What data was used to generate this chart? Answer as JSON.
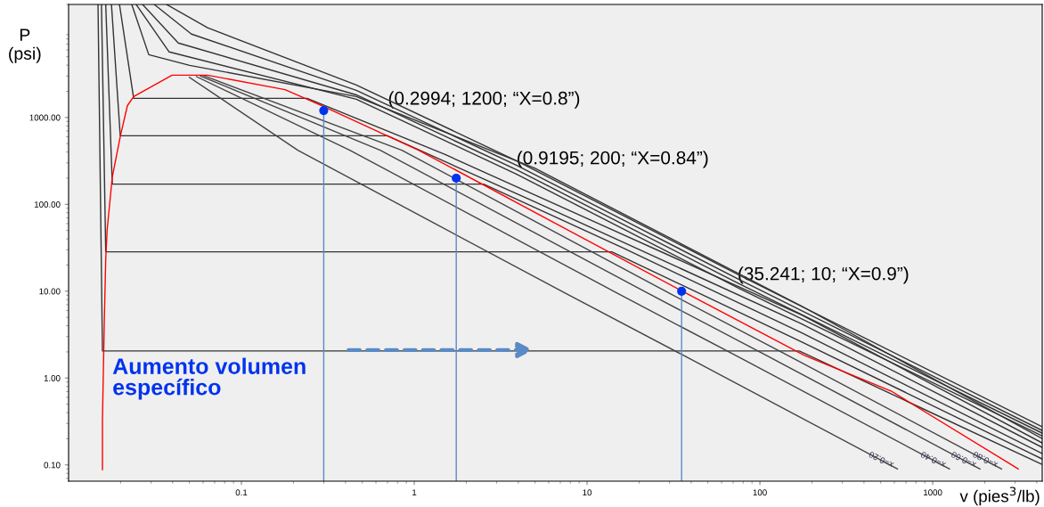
{
  "chart_data": {
    "type": "line",
    "xlabel": "v (pies$^{3}$/lb)",
    "ylabel": "P\n(psi)",
    "log": "xy",
    "marker": "none",
    "xlim": [
      0.01,
      4300
    ],
    "ylim": [
      0.065,
      20000
    ],
    "xticks": [
      0.1,
      1,
      10,
      100,
      1000
    ],
    "yticks": [
      {
        "value": 0.1,
        "label": "0.10"
      },
      {
        "value": 1,
        "label": "1.00"
      },
      {
        "value": 10,
        "label": "10.00"
      },
      {
        "value": 100,
        "label": "100.00"
      },
      {
        "value": 1000,
        "label": "1000.00"
      }
    ],
    "series": [
      {
        "color": "#333333",
        "x": [
          0.0148,
          0.0157,
          169,
          4300
        ],
        "values": [
          20000,
          2.05,
          2.05,
          0.101
        ]
      },
      {
        "color": "#333333",
        "x": [
          0.0155,
          0.0164,
          13.9,
          175,
          4300
        ],
        "values": [
          20000,
          28.4,
          28.4,
          2.6,
          0.117
        ]
      },
      {
        "color": "#333333",
        "x": [
          0.0164,
          0.0179,
          2.52,
          16.3,
          175,
          4300
        ],
        "values": [
          20000,
          171,
          171,
          31.2,
          3.3,
          0.135
        ]
      },
      {
        "color": "#333333",
        "x": [
          0.0177,
          0.0199,
          0.7,
          4.97,
          175,
          4300
        ],
        "values": [
          20000,
          615,
          615,
          107,
          4.2,
          0.159
        ]
      },
      {
        "color": "#333333",
        "x": [
          0.0197,
          0.0238,
          0.24,
          1.51,
          175,
          4300
        ],
        "values": [
          20000,
          1660,
          1660,
          374,
          5.3,
          0.179
        ]
      },
      {
        "color": "#333333",
        "x": [
          0.0232,
          0.0291,
          0.0502,
          0.462,
          4.97,
          175,
          4300
        ],
        "values": [
          20000,
          5280,
          3980,
          1740,
          262,
          6.7,
          0.201
        ]
      },
      {
        "color": "#333333",
        "x": [
          0.0246,
          0.0382,
          0.462,
          3.92,
          76.1,
          4300
        ],
        "values": [
          20000,
          5680,
          1620,
          222,
          10.7,
          0.216
        ]
      },
      {
        "color": "#333333",
        "x": [
          0.0268,
          0.0431,
          0.462,
          3.92,
          76.1,
          4300
        ],
        "values": [
          20000,
          7200,
          1820,
          250,
          12.1,
          0.232
        ]
      },
      {
        "color": "#333333",
        "x": [
          0.0313,
          0.0514,
          0.462,
          3.92,
          76.1,
          4300
        ],
        "values": [
          20000,
          9120,
          2050,
          281,
          13.6,
          0.249
        ]
      },
      {
        "color": "#333333",
        "x": [
          0.0369,
          0.0637,
          0.462,
          3.92,
          76.1,
          4300
        ],
        "values": [
          20000,
          10800,
          2370,
          316,
          15.3,
          0.274
        ]
      },
      {
        "name": "x=0.20",
        "color": "#444444",
        "x": [
          0.05,
          0.212,
          1.26,
          7.46,
          36.2,
          625
        ],
        "values": [
          2900,
          420,
          63,
          9.5,
          1.82,
          0.09
        ]
      },
      {
        "name": "x=0.40",
        "color": "#444444",
        "x": [
          0.055,
          0.424,
          2.52,
          14.9,
          72.4,
          1250
        ],
        "values": [
          2950,
          420,
          63,
          9.5,
          1.82,
          0.09
        ]
      },
      {
        "name": "x=0.60",
        "color": "#444444",
        "x": [
          0.058,
          0.636,
          3.78,
          22.4,
          109,
          1875
        ],
        "values": [
          3000,
          420,
          63,
          9.5,
          1.82,
          0.09
        ]
      },
      {
        "name": "x=0.80",
        "color": "#444444",
        "x": [
          0.06,
          0.848,
          5.04,
          29.8,
          145,
          2500
        ],
        "values": [
          3050,
          420,
          63,
          9.5,
          1.82,
          0.09
        ]
      },
      {
        "color": "#ff0000",
        "x": [
          0.0157,
          0.0157,
          0.0161,
          0.0164,
          0.0167,
          0.0179,
          0.02,
          0.0219,
          0.0238,
          0.0397,
          0.0637,
          0.179,
          0.288,
          1.06,
          6.3,
          37.3,
          181,
          573,
          3125
        ],
        "values": [
          0.088,
          0.33,
          4.7,
          23,
          50,
          207,
          630,
          1370,
          1740,
          3070,
          3070,
          2090,
          1380,
          420,
          63,
          9.5,
          1.82,
          0.71,
          0.09
        ]
      },
      {
        "color": "#5a8ac6",
        "x": [
          0.2994,
          0.2994
        ],
        "values": [
          0.065,
          1200
        ]
      },
      {
        "color": "#5a8ac6",
        "x": [
          1.75,
          1.75
        ],
        "values": [
          0.065,
          200
        ]
      },
      {
        "color": "#5a8ac6",
        "x": [
          35.241,
          35.241
        ],
        "values": [
          0.065,
          10
        ]
      },
      {
        "type": "scatter",
        "marker": "circle",
        "color": "#0033ee",
        "x": [
          0.2994,
          1.75,
          35.241
        ],
        "values": [
          1200,
          200,
          10
        ]
      }
    ],
    "annotations": [
      "(0.2994; 1200; “X=0.8”)",
      "(0.9195; 200; “X=0.84”)",
      "(35.241; 10; “X=0.9”)",
      "Aumento volumen\nespecífico"
    ]
  }
}
